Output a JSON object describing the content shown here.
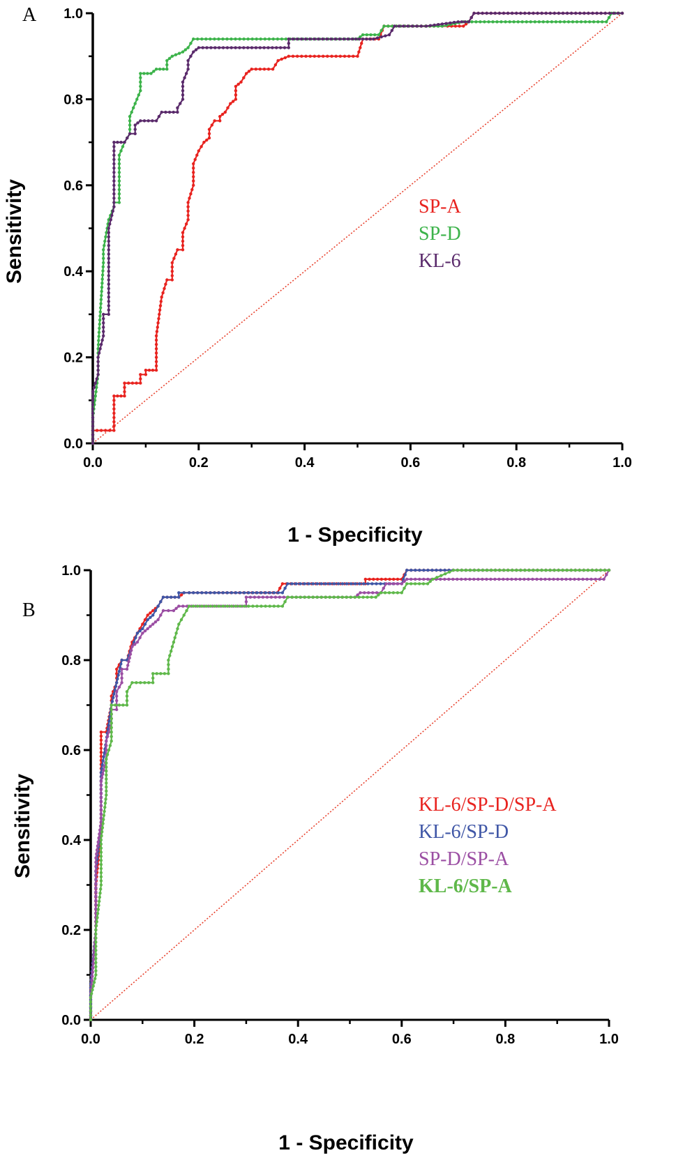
{
  "chart_data": [
    {
      "type": "line",
      "panel_label": "A",
      "xlabel": "1 - Specificity",
      "ylabel": "Sensitivity",
      "xlim": [
        0,
        1
      ],
      "ylim": [
        0,
        1
      ],
      "xticks": [
        "0.0",
        "0.2",
        "0.4",
        "0.6",
        "0.8",
        "1.0"
      ],
      "yticks": [
        "0.0",
        "0.2",
        "0.4",
        "0.6",
        "0.8",
        "1.0"
      ],
      "legend_placement": "right-middle",
      "reference_line": {
        "name": "chance",
        "color": "#e8432f",
        "points": [
          [
            0,
            0
          ],
          [
            1,
            1
          ]
        ]
      },
      "series": [
        {
          "name": "SP-A",
          "color": "#e8231f",
          "bold": false,
          "points": [
            [
              0,
              0
            ],
            [
              0,
              0.03
            ],
            [
              0.04,
              0.03
            ],
            [
              0.04,
              0.11
            ],
            [
              0.06,
              0.11
            ],
            [
              0.06,
              0.14
            ],
            [
              0.09,
              0.14
            ],
            [
              0.09,
              0.16
            ],
            [
              0.1,
              0.16
            ],
            [
              0.1,
              0.17
            ],
            [
              0.12,
              0.17
            ],
            [
              0.12,
              0.25
            ],
            [
              0.13,
              0.34
            ],
            [
              0.14,
              0.38
            ],
            [
              0.15,
              0.38
            ],
            [
              0.15,
              0.42
            ],
            [
              0.16,
              0.45
            ],
            [
              0.17,
              0.45
            ],
            [
              0.17,
              0.49
            ],
            [
              0.18,
              0.52
            ],
            [
              0.18,
              0.56
            ],
            [
              0.19,
              0.6
            ],
            [
              0.19,
              0.65
            ],
            [
              0.2,
              0.68
            ],
            [
              0.21,
              0.7
            ],
            [
              0.22,
              0.71
            ],
            [
              0.22,
              0.73
            ],
            [
              0.23,
              0.75
            ],
            [
              0.24,
              0.75
            ],
            [
              0.24,
              0.76
            ],
            [
              0.25,
              0.77
            ],
            [
              0.26,
              0.79
            ],
            [
              0.27,
              0.8
            ],
            [
              0.27,
              0.83
            ],
            [
              0.28,
              0.84
            ],
            [
              0.29,
              0.86
            ],
            [
              0.3,
              0.87
            ],
            [
              0.34,
              0.87
            ],
            [
              0.35,
              0.89
            ],
            [
              0.37,
              0.9
            ],
            [
              0.5,
              0.9
            ],
            [
              0.51,
              0.94
            ],
            [
              0.54,
              0.94
            ],
            [
              0.55,
              0.97
            ],
            [
              0.66,
              0.97
            ],
            [
              0.67,
              0.97
            ],
            [
              0.7,
              0.97
            ],
            [
              0.71,
              0.98
            ],
            [
              0.72,
              1.0
            ],
            [
              1.0,
              1.0
            ]
          ]
        },
        {
          "name": "SP-D",
          "color": "#3cb34a",
          "bold": false,
          "points": [
            [
              0,
              0
            ],
            [
              0,
              0.06
            ],
            [
              0.01,
              0.16
            ],
            [
              0.01,
              0.22
            ],
            [
              0.02,
              0.42
            ],
            [
              0.02,
              0.45
            ],
            [
              0.03,
              0.52
            ],
            [
              0.04,
              0.55
            ],
            [
              0.04,
              0.56
            ],
            [
              0.05,
              0.56
            ],
            [
              0.05,
              0.67
            ],
            [
              0.06,
              0.7
            ],
            [
              0.07,
              0.72
            ],
            [
              0.07,
              0.76
            ],
            [
              0.08,
              0.79
            ],
            [
              0.09,
              0.82
            ],
            [
              0.09,
              0.86
            ],
            [
              0.11,
              0.86
            ],
            [
              0.12,
              0.87
            ],
            [
              0.14,
              0.87
            ],
            [
              0.14,
              0.89
            ],
            [
              0.15,
              0.9
            ],
            [
              0.17,
              0.91
            ],
            [
              0.18,
              0.92
            ],
            [
              0.19,
              0.94
            ],
            [
              0.5,
              0.94
            ],
            [
              0.51,
              0.95
            ],
            [
              0.54,
              0.95
            ],
            [
              0.55,
              0.97
            ],
            [
              0.66,
              0.97
            ],
            [
              0.7,
              0.98
            ],
            [
              0.97,
              0.98
            ],
            [
              0.98,
              1.0
            ],
            [
              1.0,
              1.0
            ]
          ]
        },
        {
          "name": "KL-6",
          "color": "#5a2a6b",
          "bold": false,
          "points": [
            [
              0,
              0
            ],
            [
              0,
              0.12
            ],
            [
              0.01,
              0.16
            ],
            [
              0.01,
              0.2
            ],
            [
              0.02,
              0.25
            ],
            [
              0.02,
              0.3
            ],
            [
              0.03,
              0.3
            ],
            [
              0.03,
              0.42
            ],
            [
              0.03,
              0.5
            ],
            [
              0.04,
              0.55
            ],
            [
              0.04,
              0.59
            ],
            [
              0.04,
              0.63
            ],
            [
              0.04,
              0.7
            ],
            [
              0.06,
              0.7
            ],
            [
              0.07,
              0.72
            ],
            [
              0.08,
              0.72
            ],
            [
              0.08,
              0.74
            ],
            [
              0.09,
              0.75
            ],
            [
              0.12,
              0.75
            ],
            [
              0.13,
              0.77
            ],
            [
              0.16,
              0.77
            ],
            [
              0.16,
              0.78
            ],
            [
              0.17,
              0.8
            ],
            [
              0.17,
              0.84
            ],
            [
              0.18,
              0.87
            ],
            [
              0.18,
              0.89
            ],
            [
              0.19,
              0.91
            ],
            [
              0.2,
              0.92
            ],
            [
              0.37,
              0.92
            ],
            [
              0.37,
              0.94
            ],
            [
              0.49,
              0.94
            ],
            [
              0.51,
              0.94
            ],
            [
              0.53,
              0.94
            ],
            [
              0.56,
              0.95
            ],
            [
              0.57,
              0.97
            ],
            [
              0.62,
              0.97
            ],
            [
              0.63,
              0.97
            ],
            [
              0.69,
              0.98
            ],
            [
              0.71,
              0.98
            ],
            [
              0.72,
              1.0
            ],
            [
              1.0,
              1.0
            ]
          ]
        }
      ]
    },
    {
      "type": "line",
      "panel_label": "B",
      "xlabel": "1 - Specificity",
      "ylabel": "Sensitivity",
      "xlim": [
        0,
        1
      ],
      "ylim": [
        0,
        1
      ],
      "xticks": [
        "0.0",
        "0.2",
        "0.4",
        "0.6",
        "0.8",
        "1.0"
      ],
      "yticks": [
        "0.0",
        "0.2",
        "0.4",
        "0.6",
        "0.8",
        "1.0"
      ],
      "legend_placement": "right-middle",
      "reference_line": {
        "name": "chance",
        "color": "#e8432f",
        "points": [
          [
            0,
            0
          ],
          [
            1,
            1
          ]
        ]
      },
      "series": [
        {
          "name": "KL-6/SP-D/SP-A",
          "color": "#e8231f",
          "bold": false,
          "points": [
            [
              0,
              0
            ],
            [
              0,
              0.08
            ],
            [
              0.01,
              0.2
            ],
            [
              0.01,
              0.3
            ],
            [
              0.02,
              0.42
            ],
            [
              0.02,
              0.55
            ],
            [
              0.02,
              0.64
            ],
            [
              0.03,
              0.64
            ],
            [
              0.04,
              0.7
            ],
            [
              0.04,
              0.72
            ],
            [
              0.05,
              0.75
            ],
            [
              0.05,
              0.78
            ],
            [
              0.06,
              0.8
            ],
            [
              0.07,
              0.8
            ],
            [
              0.08,
              0.84
            ],
            [
              0.09,
              0.86
            ],
            [
              0.1,
              0.88
            ],
            [
              0.11,
              0.9
            ],
            [
              0.12,
              0.91
            ],
            [
              0.13,
              0.92
            ],
            [
              0.14,
              0.94
            ],
            [
              0.17,
              0.94
            ],
            [
              0.18,
              0.95
            ],
            [
              0.19,
              0.95
            ],
            [
              0.36,
              0.95
            ],
            [
              0.37,
              0.97
            ],
            [
              0.53,
              0.97
            ],
            [
              0.53,
              0.98
            ],
            [
              0.6,
              0.98
            ],
            [
              0.61,
              1.0
            ],
            [
              1.0,
              1.0
            ]
          ]
        },
        {
          "name": "KL-6/SP-D",
          "color": "#3f56a6",
          "bold": false,
          "points": [
            [
              0,
              0
            ],
            [
              0,
              0.08
            ],
            [
              0.01,
              0.2
            ],
            [
              0.01,
              0.33
            ],
            [
              0.02,
              0.44
            ],
            [
              0.02,
              0.55
            ],
            [
              0.03,
              0.62
            ],
            [
              0.04,
              0.7
            ],
            [
              0.05,
              0.75
            ],
            [
              0.06,
              0.8
            ],
            [
              0.07,
              0.8
            ],
            [
              0.08,
              0.83
            ],
            [
              0.09,
              0.86
            ],
            [
              0.1,
              0.87
            ],
            [
              0.11,
              0.89
            ],
            [
              0.12,
              0.9
            ],
            [
              0.13,
              0.92
            ],
            [
              0.14,
              0.94
            ],
            [
              0.17,
              0.94
            ],
            [
              0.17,
              0.95
            ],
            [
              0.19,
              0.95
            ],
            [
              0.37,
              0.95
            ],
            [
              0.38,
              0.97
            ],
            [
              0.6,
              0.97
            ],
            [
              0.61,
              1.0
            ],
            [
              1.0,
              1.0
            ]
          ]
        },
        {
          "name": "SP-D/SP-A",
          "color": "#9b4ea3",
          "bold": false,
          "points": [
            [
              0,
              0
            ],
            [
              0,
              0.05
            ],
            [
              0.01,
              0.2
            ],
            [
              0.01,
              0.36
            ],
            [
              0.02,
              0.44
            ],
            [
              0.02,
              0.53
            ],
            [
              0.03,
              0.58
            ],
            [
              0.03,
              0.62
            ],
            [
              0.04,
              0.66
            ],
            [
              0.04,
              0.69
            ],
            [
              0.05,
              0.69
            ],
            [
              0.05,
              0.73
            ],
            [
              0.06,
              0.75
            ],
            [
              0.06,
              0.78
            ],
            [
              0.07,
              0.78
            ],
            [
              0.08,
              0.83
            ],
            [
              0.09,
              0.84
            ],
            [
              0.1,
              0.86
            ],
            [
              0.11,
              0.87
            ],
            [
              0.12,
              0.88
            ],
            [
              0.13,
              0.89
            ],
            [
              0.14,
              0.91
            ],
            [
              0.16,
              0.91
            ],
            [
              0.17,
              0.92
            ],
            [
              0.3,
              0.92
            ],
            [
              0.3,
              0.94
            ],
            [
              0.51,
              0.94
            ],
            [
              0.52,
              0.95
            ],
            [
              0.56,
              0.95
            ],
            [
              0.57,
              0.97
            ],
            [
              0.6,
              0.97
            ],
            [
              0.61,
              0.98
            ],
            [
              0.99,
              0.98
            ],
            [
              1.0,
              1.0
            ]
          ]
        },
        {
          "name": "KL-6/SP-A",
          "color": "#5fb84a",
          "bold": true,
          "points": [
            [
              0,
              0
            ],
            [
              0,
              0.05
            ],
            [
              0.01,
              0.1
            ],
            [
              0.01,
              0.2
            ],
            [
              0.02,
              0.3
            ],
            [
              0.02,
              0.4
            ],
            [
              0.03,
              0.5
            ],
            [
              0.03,
              0.58
            ],
            [
              0.04,
              0.62
            ],
            [
              0.04,
              0.68
            ],
            [
              0.04,
              0.7
            ],
            [
              0.07,
              0.7
            ],
            [
              0.07,
              0.73
            ],
            [
              0.08,
              0.75
            ],
            [
              0.12,
              0.75
            ],
            [
              0.12,
              0.77
            ],
            [
              0.15,
              0.77
            ],
            [
              0.15,
              0.8
            ],
            [
              0.16,
              0.84
            ],
            [
              0.17,
              0.88
            ],
            [
              0.18,
              0.9
            ],
            [
              0.19,
              0.92
            ],
            [
              0.37,
              0.92
            ],
            [
              0.38,
              0.94
            ],
            [
              0.55,
              0.94
            ],
            [
              0.56,
              0.95
            ],
            [
              0.6,
              0.95
            ],
            [
              0.61,
              0.97
            ],
            [
              0.65,
              0.97
            ],
            [
              0.66,
              0.98
            ],
            [
              0.7,
              1.0
            ],
            [
              1.0,
              1.0
            ]
          ]
        }
      ]
    }
  ]
}
